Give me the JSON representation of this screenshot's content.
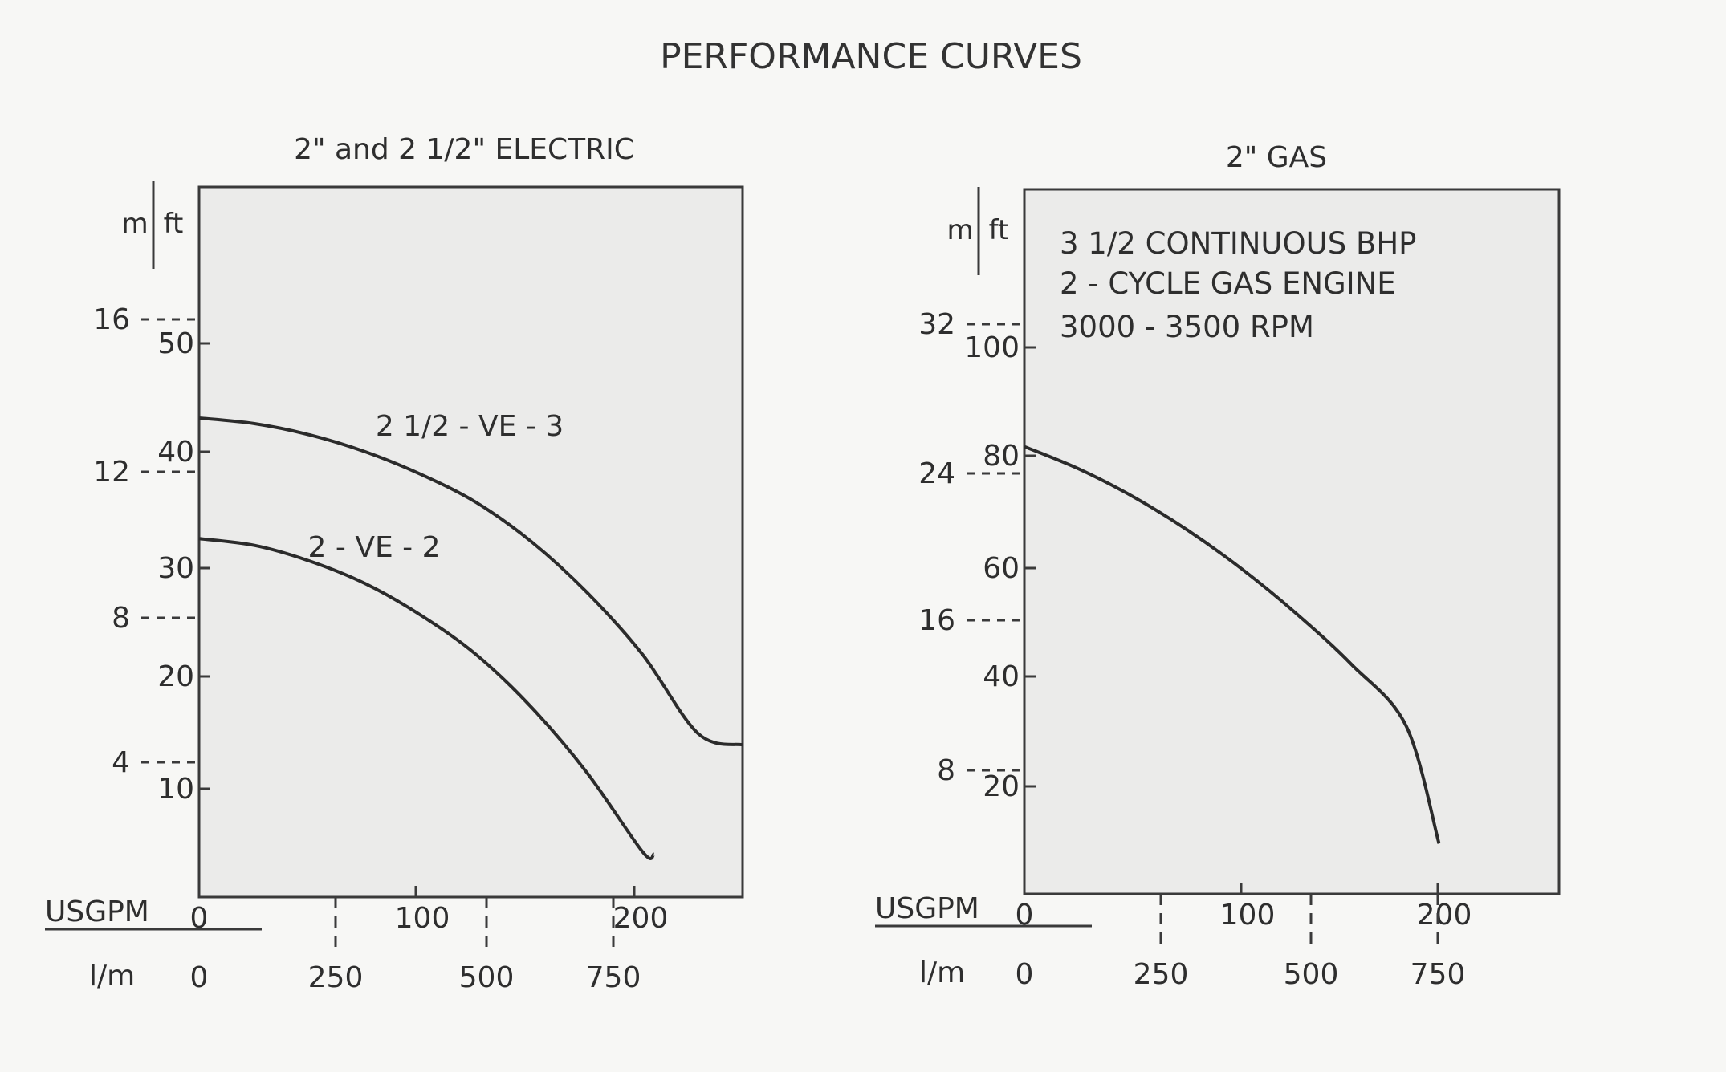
{
  "title": "PERFORMANCE CURVES",
  "chart_data": [
    {
      "type": "line",
      "title": "2\" and 2 1/2\" ELECTRIC",
      "ylabel_left": "m",
      "ylabel_right": "ft",
      "xlabel_top": "USGPM",
      "xlabel_bottom": "l/m",
      "ylim_ft": [
        0,
        63
      ],
      "xlim_usgpm": [
        0,
        245
      ],
      "ft_ticks": [
        "10",
        "20",
        "30",
        "40",
        "50"
      ],
      "m_ticks": [
        "4",
        "8",
        "12",
        "16"
      ],
      "usgpm_ticks": [
        "0",
        "100",
        "200"
      ],
      "lpm_ticks": [
        "0",
        "250",
        "500",
        "750"
      ],
      "series": [
        {
          "name": "2 1/2 - VE - 3",
          "x": [
            0,
            25,
            50,
            75,
            100,
            125,
            150,
            175,
            200,
            225,
            245
          ],
          "y": [
            42.5,
            42,
            41,
            39.5,
            37.5,
            35,
            31.5,
            27,
            21.5,
            14.5,
            13.5
          ]
        },
        {
          "name": "2 - VE - 2",
          "x": [
            0,
            25,
            50,
            75,
            100,
            125,
            150,
            175,
            200,
            205
          ],
          "y": [
            31.8,
            31.2,
            29.8,
            27.8,
            25,
            21.5,
            16.8,
            11,
            4,
            3.8
          ]
        }
      ]
    },
    {
      "type": "line",
      "title": "2\" GAS",
      "ylabel_left": "m",
      "ylabel_right": "ft",
      "xlabel_top": "USGPM",
      "xlabel_bottom": "l/m",
      "ylim_ft": [
        0,
        126
      ],
      "xlim_usgpm": [
        0,
        245
      ],
      "ft_ticks": [
        "20",
        "40",
        "60",
        "80",
        "100"
      ],
      "m_ticks": [
        "8",
        "16",
        "24",
        "32"
      ],
      "usgpm_ticks": [
        "0",
        "100",
        "200"
      ],
      "lpm_ticks": [
        "0",
        "250",
        "500",
        "750"
      ],
      "annotation": [
        "3 1/2 CONTINUOUS BHP",
        "2 - CYCLE GAS ENGINE",
        "3000 - 3500 RPM"
      ],
      "series": [
        {
          "name": "2\" GAS",
          "x": [
            0,
            25,
            50,
            75,
            100,
            125,
            150,
            175,
            190
          ],
          "y": [
            80,
            76,
            71,
            65,
            58,
            50,
            41,
            30,
            9
          ]
        }
      ]
    }
  ]
}
